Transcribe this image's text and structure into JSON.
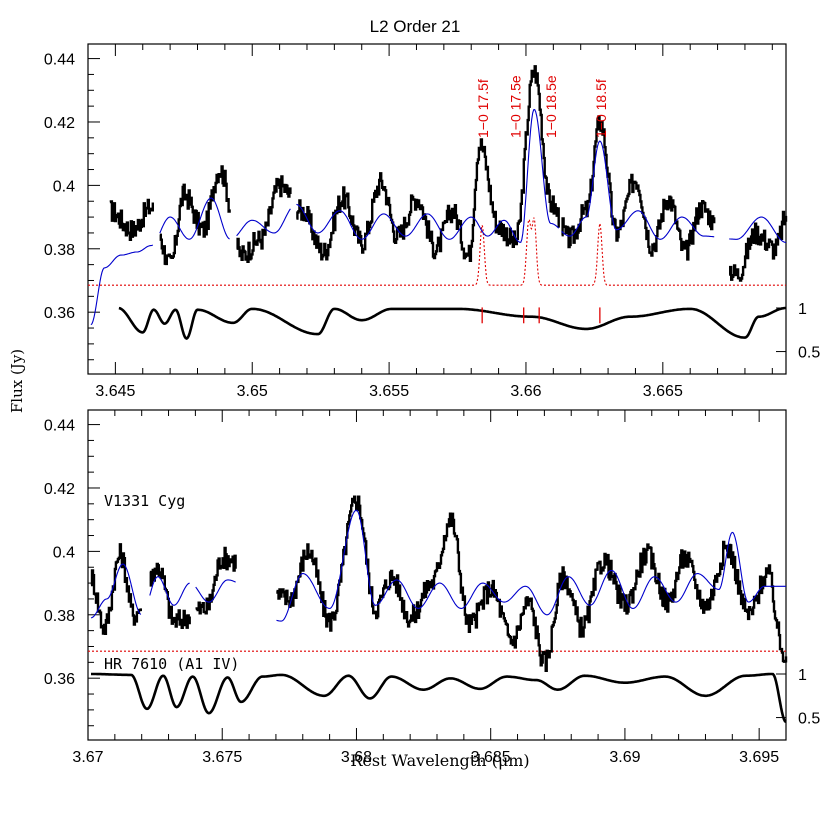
{
  "colors": {
    "spectrum": "#000000",
    "model": "#0000cc",
    "gas": "#e00000"
  },
  "figure": {
    "title": "L2 Order 21",
    "ylabel": "Flux (Jy)",
    "xlabel": "Rest Wavelength (μm)"
  },
  "chart_data": [
    {
      "type": "line",
      "panel": "top",
      "title": "L2 Order 21",
      "ylabel": "Flux (Jy)",
      "xlim": [
        3.644,
        3.6695
      ],
      "ylim": [
        0.3405,
        0.4446
      ],
      "xticks": [
        "3.645",
        "3.65",
        "3.655",
        "3.66",
        "3.665"
      ],
      "yticks": [
        "0.36",
        "0.38",
        "0.4",
        "0.42",
        "0.44"
      ],
      "right_axis_ticks": [
        "1",
        "0.5"
      ],
      "gaps": [
        [
          3.6464,
          3.6466
        ],
        [
          3.6492,
          3.6494
        ],
        [
          3.6514,
          3.6516
        ],
        [
          3.6612,
          3.6613
        ],
        [
          3.6669,
          3.6674
        ]
      ],
      "observed_anchors": [
        [
          3.6448,
          0.392
        ],
        [
          3.6456,
          0.386
        ],
        [
          3.6463,
          0.393
        ],
        [
          3.647,
          0.375
        ],
        [
          3.6475,
          0.397
        ],
        [
          3.6482,
          0.386
        ],
        [
          3.6488,
          0.405
        ],
        [
          3.6496,
          0.378
        ],
        [
          3.6503,
          0.383
        ],
        [
          3.651,
          0.4
        ],
        [
          3.6518,
          0.392
        ],
        [
          3.6526,
          0.379
        ],
        [
          3.6533,
          0.396
        ],
        [
          3.654,
          0.382
        ],
        [
          3.6547,
          0.401
        ],
        [
          3.6553,
          0.384
        ],
        [
          3.656,
          0.396
        ],
        [
          3.6567,
          0.38
        ],
        [
          3.6573,
          0.392
        ],
        [
          3.6579,
          0.378
        ],
        [
          3.6583,
          0.413
        ],
        [
          3.659,
          0.387
        ],
        [
          3.6596,
          0.382
        ],
        [
          3.6603,
          0.436
        ],
        [
          3.6609,
          0.394
        ],
        [
          3.6616,
          0.383
        ],
        [
          3.6622,
          0.392
        ],
        [
          3.6627,
          0.42
        ],
        [
          3.6633,
          0.385
        ],
        [
          3.664,
          0.402
        ],
        [
          3.6646,
          0.381
        ],
        [
          3.6652,
          0.396
        ],
        [
          3.6658,
          0.379
        ],
        [
          3.6664,
          0.393
        ],
        [
          3.6677,
          0.372
        ],
        [
          3.6684,
          0.385
        ],
        [
          3.6691,
          0.38
        ],
        [
          3.6695,
          0.39
        ]
      ],
      "model_anchors": [
        [
          3.6441,
          0.356
        ],
        [
          3.6446,
          0.374
        ],
        [
          3.6452,
          0.378
        ],
        [
          3.6458,
          0.379
        ],
        [
          3.6463,
          0.381
        ],
        [
          3.647,
          0.39
        ],
        [
          3.6477,
          0.383
        ],
        [
          3.6485,
          0.396
        ],
        [
          3.6492,
          0.383
        ],
        [
          3.65,
          0.389
        ],
        [
          3.6508,
          0.385
        ],
        [
          3.6516,
          0.394
        ],
        [
          3.6524,
          0.385
        ],
        [
          3.6532,
          0.392
        ],
        [
          3.654,
          0.383
        ],
        [
          3.6548,
          0.391
        ],
        [
          3.6556,
          0.384
        ],
        [
          3.6564,
          0.391
        ],
        [
          3.6572,
          0.383
        ],
        [
          3.658,
          0.39
        ],
        [
          3.6586,
          0.384
        ],
        [
          3.6592,
          0.389
        ],
        [
          3.6598,
          0.382
        ],
        [
          3.6603,
          0.424
        ],
        [
          3.6609,
          0.388
        ],
        [
          3.6616,
          0.384
        ],
        [
          3.6622,
          0.39
        ],
        [
          3.6627,
          0.414
        ],
        [
          3.6633,
          0.386
        ],
        [
          3.6641,
          0.392
        ],
        [
          3.6649,
          0.383
        ],
        [
          3.6657,
          0.39
        ],
        [
          3.6665,
          0.384
        ],
        [
          3.6677,
          0.383
        ],
        [
          3.6686,
          0.39
        ],
        [
          3.6695,
          0.382
        ]
      ],
      "gas_model": {
        "baseline": 0.3685,
        "lines": [
          {
            "label": "1−0 17.5f",
            "wavelength": 3.6584,
            "peak": 0.3875,
            "marks": 1
          },
          {
            "label": "1−0 17.5e",
            "wavelength": 3.6601,
            "peak": 0.3885,
            "marks": 1
          },
          {
            "label": "1−0 18.5e",
            "wavelength": 3.6603,
            "peak": 0.389,
            "marks": 1
          },
          {
            "label": "1−0 18.5f",
            "wavelength": 3.6627,
            "peak": 0.388,
            "marks": 1
          }
        ]
      },
      "standard_anchors": [
        [
          3.6451,
          1.0
        ],
        [
          3.646,
          0.72
        ],
        [
          3.6464,
          0.98
        ],
        [
          3.6468,
          0.82
        ],
        [
          3.6472,
          0.98
        ],
        [
          3.6476,
          0.65
        ],
        [
          3.648,
          0.98
        ],
        [
          3.6493,
          0.83
        ],
        [
          3.65,
          0.99
        ],
        [
          3.6524,
          0.7
        ],
        [
          3.653,
          0.99
        ],
        [
          3.654,
          0.86
        ],
        [
          3.6551,
          0.99
        ],
        [
          3.6575,
          0.99
        ],
        [
          3.6602,
          0.9
        ],
        [
          3.6622,
          0.76
        ],
        [
          3.6638,
          0.9
        ],
        [
          3.666,
          0.99
        ],
        [
          3.668,
          0.66
        ],
        [
          3.6685,
          0.9
        ],
        [
          3.6695,
          1.0
        ]
      ]
    },
    {
      "type": "line",
      "panel": "bottom",
      "star_label": "V1331 Cyg",
      "standard_label": "HR 7610 (A1 IV)",
      "xlabel": "Rest Wavelength (μm)",
      "xlim": [
        3.67,
        3.696
      ],
      "ylim": [
        0.3405,
        0.4446
      ],
      "xticks": [
        "3.67",
        "3.675",
        "3.68",
        "3.685",
        "3.69",
        "3.695"
      ],
      "yticks": [
        "0.36",
        "0.38",
        "0.4",
        "0.42",
        "0.44"
      ],
      "right_axis_ticks": [
        "1",
        "0.5"
      ],
      "gaps": [
        [
          3.672,
          3.6723
        ],
        [
          3.6738,
          3.674
        ],
        [
          3.6755,
          3.677
        ]
      ],
      "observed_anchors": [
        [
          3.6701,
          0.392
        ],
        [
          3.6706,
          0.376
        ],
        [
          3.6712,
          0.399
        ],
        [
          3.6717,
          0.38
        ],
        [
          3.6726,
          0.395
        ],
        [
          3.6732,
          0.378
        ],
        [
          3.6744,
          0.382
        ],
        [
          3.675,
          0.398
        ],
        [
          3.6775,
          0.385
        ],
        [
          3.6782,
          0.4
        ],
        [
          3.679,
          0.378
        ],
        [
          3.68,
          0.416
        ],
        [
          3.6807,
          0.382
        ],
        [
          3.6813,
          0.392
        ],
        [
          3.682,
          0.379
        ],
        [
          3.6828,
          0.39
        ],
        [
          3.6835,
          0.41
        ],
        [
          3.6842,
          0.377
        ],
        [
          3.685,
          0.388
        ],
        [
          3.6858,
          0.372
        ],
        [
          3.6864,
          0.384
        ],
        [
          3.687,
          0.365
        ],
        [
          3.6877,
          0.392
        ],
        [
          3.6884,
          0.376
        ],
        [
          3.6892,
          0.397
        ],
        [
          3.69,
          0.383
        ],
        [
          3.6908,
          0.399
        ],
        [
          3.6916,
          0.384
        ],
        [
          3.6922,
          0.398
        ],
        [
          3.693,
          0.383
        ],
        [
          3.6938,
          0.401
        ],
        [
          3.6946,
          0.38
        ],
        [
          3.6953,
          0.393
        ],
        [
          3.6959,
          0.368
        ]
      ],
      "model_anchors": [
        [
          3.6701,
          0.379
        ],
        [
          3.6707,
          0.385
        ],
        [
          3.6713,
          0.396
        ],
        [
          3.672,
          0.38
        ],
        [
          3.6726,
          0.392
        ],
        [
          3.6732,
          0.383
        ],
        [
          3.6738,
          0.39
        ],
        [
          3.6745,
          0.384
        ],
        [
          3.6752,
          0.391
        ],
        [
          3.6772,
          0.378
        ],
        [
          3.678,
          0.393
        ],
        [
          3.679,
          0.382
        ],
        [
          3.68,
          0.413
        ],
        [
          3.6807,
          0.383
        ],
        [
          3.6815,
          0.391
        ],
        [
          3.6823,
          0.382
        ],
        [
          3.6831,
          0.39
        ],
        [
          3.6839,
          0.382
        ],
        [
          3.6847,
          0.39
        ],
        [
          3.6855,
          0.384
        ],
        [
          3.6863,
          0.389
        ],
        [
          3.6871,
          0.38
        ],
        [
          3.6879,
          0.392
        ],
        [
          3.6887,
          0.383
        ],
        [
          3.6895,
          0.394
        ],
        [
          3.6903,
          0.382
        ],
        [
          3.6911,
          0.392
        ],
        [
          3.6919,
          0.384
        ],
        [
          3.6927,
          0.393
        ],
        [
          3.6935,
          0.388
        ],
        [
          3.694,
          0.406
        ],
        [
          3.6946,
          0.384
        ],
        [
          3.6952,
          0.389
        ]
      ],
      "gas_model": {
        "baseline": 0.3685,
        "lines": []
      },
      "standard_anchors": [
        [
          3.6701,
          1.0
        ],
        [
          3.6716,
          0.99
        ],
        [
          3.6722,
          0.6
        ],
        [
          3.6728,
          0.98
        ],
        [
          3.6733,
          0.62
        ],
        [
          3.6739,
          0.97
        ],
        [
          3.6745,
          0.55
        ],
        [
          3.6752,
          0.96
        ],
        [
          3.6757,
          0.68
        ],
        [
          3.6765,
          0.97
        ],
        [
          3.6772,
          0.99
        ],
        [
          3.6788,
          0.75
        ],
        [
          3.6797,
          0.98
        ],
        [
          3.6805,
          0.72
        ],
        [
          3.6813,
          0.97
        ],
        [
          3.6825,
          0.82
        ],
        [
          3.6835,
          0.95
        ],
        [
          3.6846,
          0.83
        ],
        [
          3.6856,
          0.97
        ],
        [
          3.6867,
          0.93
        ],
        [
          3.6875,
          0.82
        ],
        [
          3.6885,
          0.98
        ],
        [
          3.69,
          0.9
        ],
        [
          3.6915,
          0.97
        ],
        [
          3.693,
          0.75
        ],
        [
          3.6945,
          0.98
        ],
        [
          3.6955,
          1.0
        ],
        [
          3.696,
          0.45
        ]
      ]
    }
  ]
}
